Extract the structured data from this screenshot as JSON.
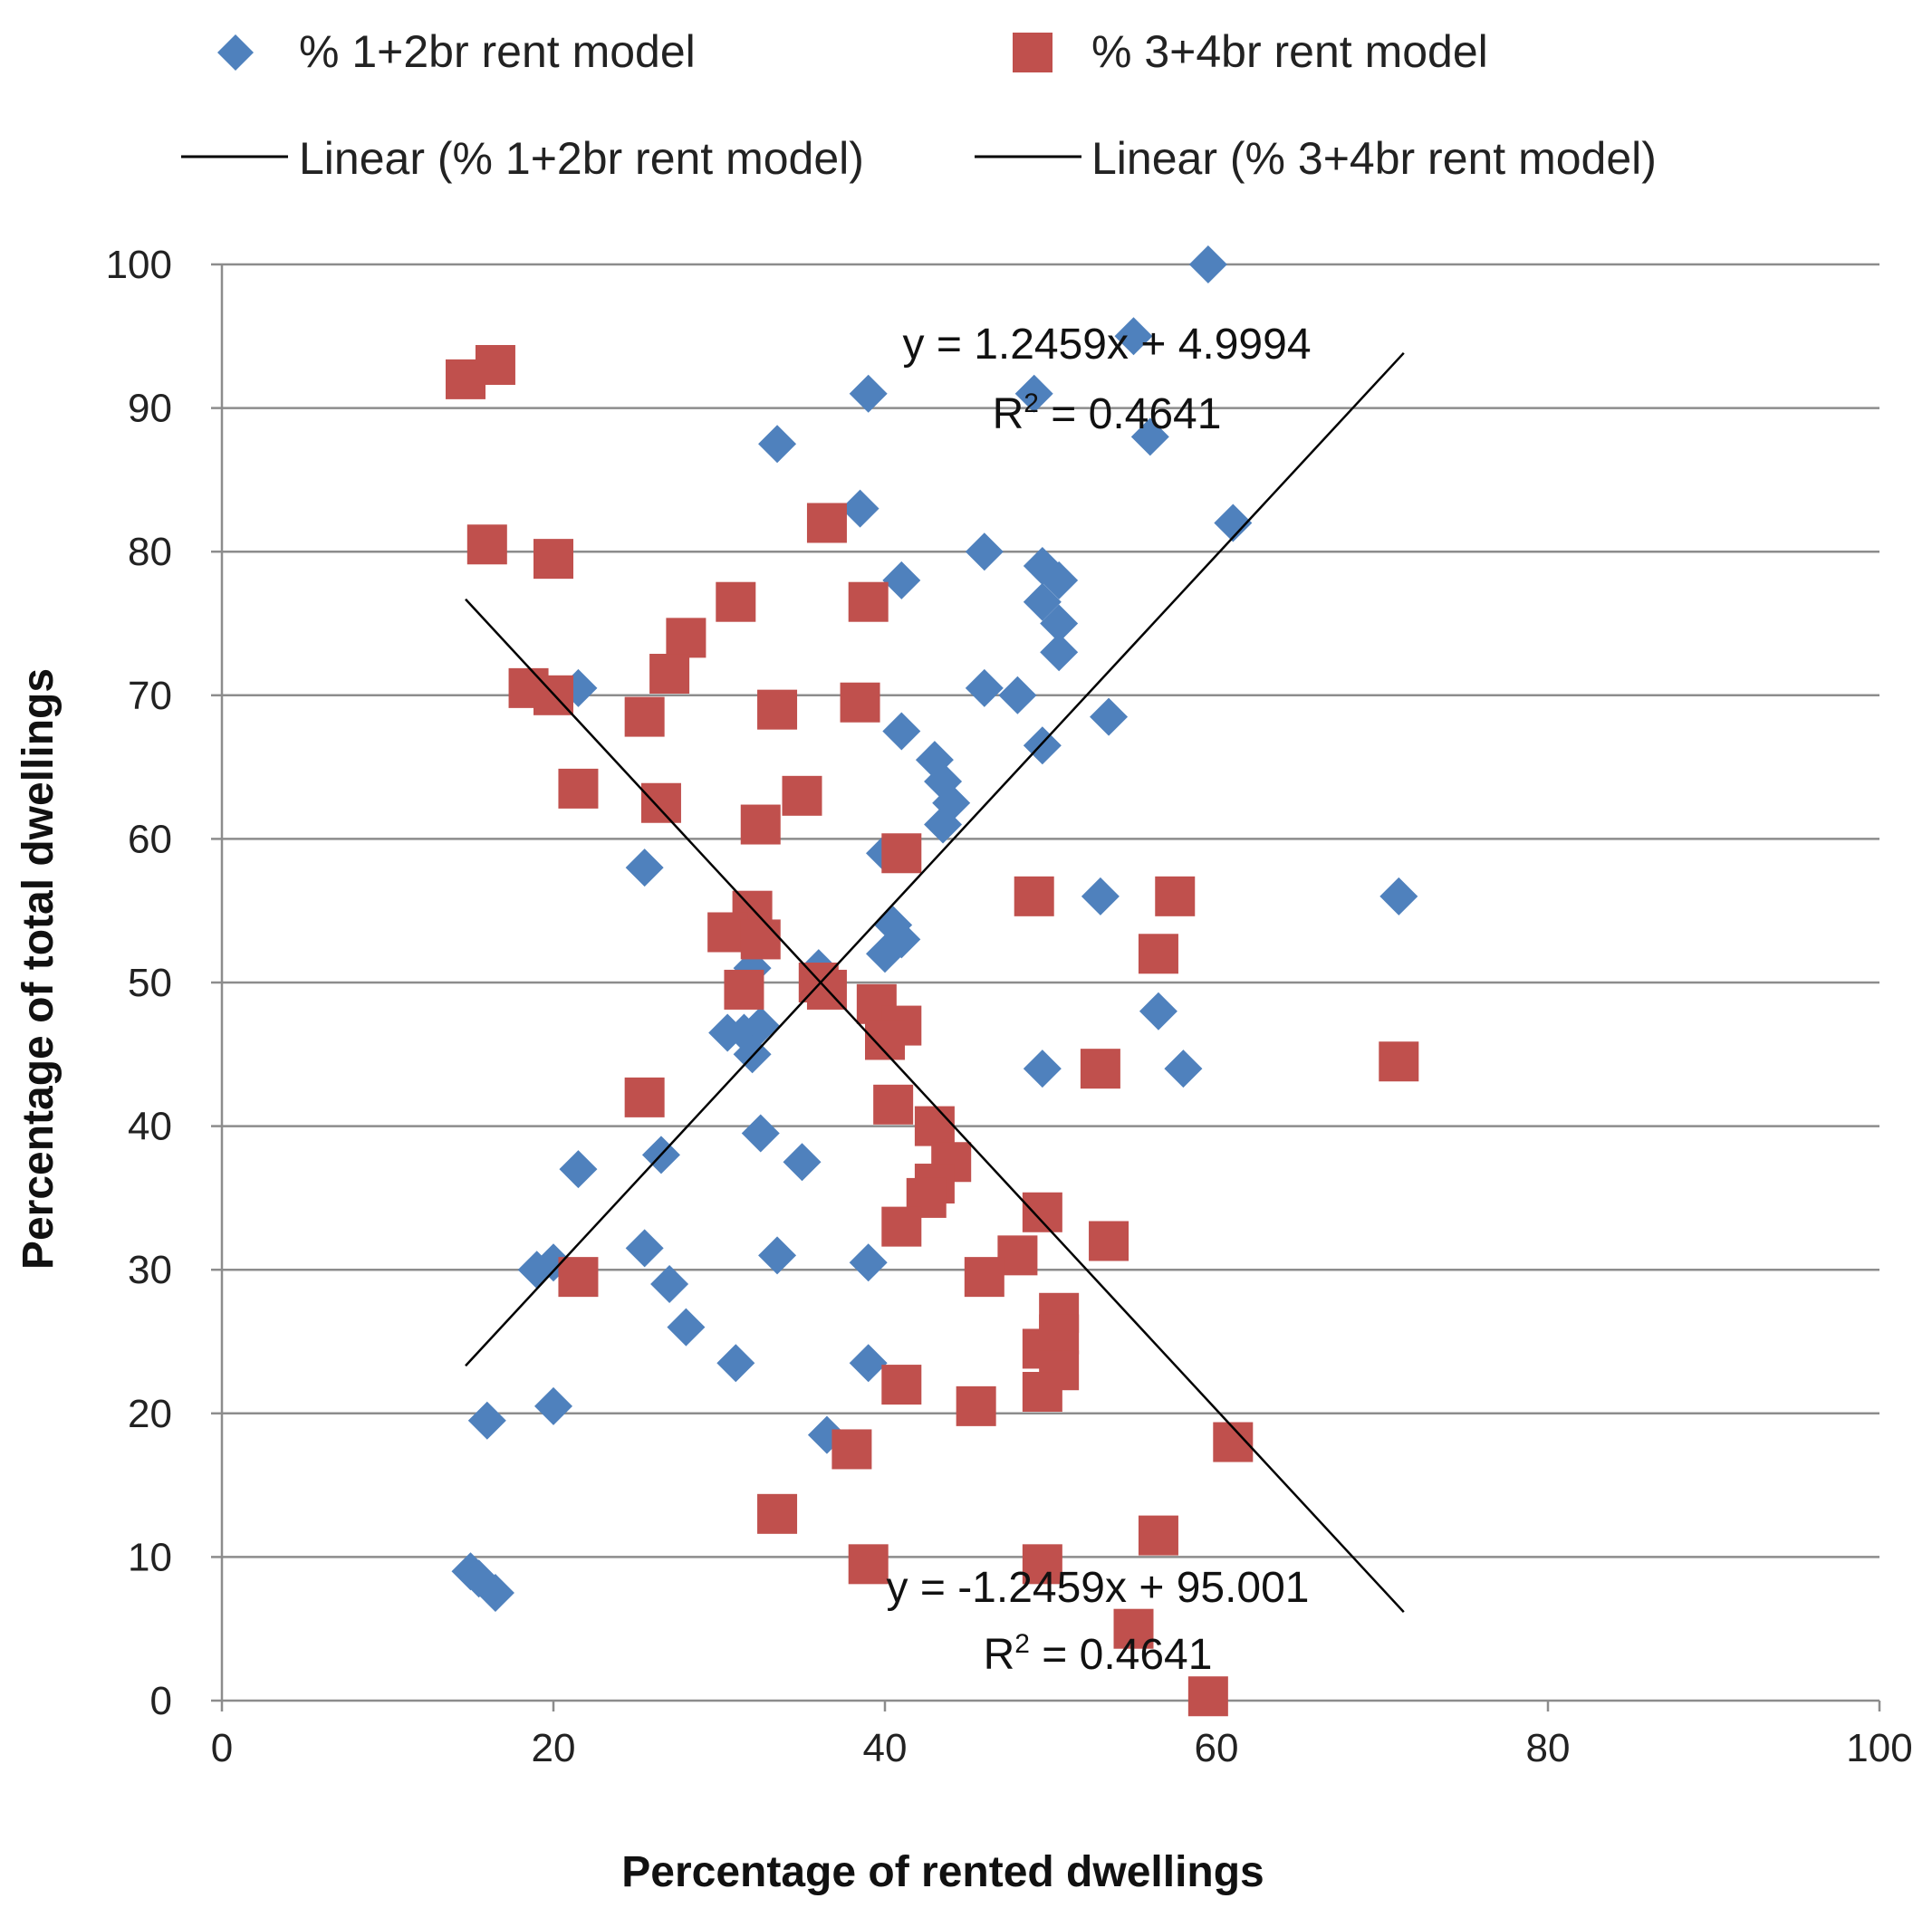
{
  "chart_data": {
    "type": "scatter",
    "xlabel": "Percentage of rented dwellings",
    "ylabel": "Percentage of total dwellings",
    "xlim": [
      0,
      100
    ],
    "ylim": [
      0,
      100
    ],
    "x_ticks": [
      0,
      20,
      40,
      60,
      80,
      100
    ],
    "y_ticks": [
      0,
      10,
      20,
      30,
      40,
      50,
      60,
      70,
      80,
      90,
      100
    ],
    "grid": "horizontal",
    "legend_position": "top",
    "series": [
      {
        "name": "% 1+2br rent model",
        "marker": "diamond",
        "color": "#4F81BD",
        "points": [
          [
            59.5,
            100
          ],
          [
            55,
            95
          ],
          [
            49,
            91
          ],
          [
            39,
            91
          ],
          [
            56,
            88
          ],
          [
            33.5,
            87.5
          ],
          [
            61,
            82
          ],
          [
            38.5,
            83
          ],
          [
            46,
            80
          ],
          [
            41,
            78
          ],
          [
            49.5,
            79
          ],
          [
            50.5,
            78
          ],
          [
            49.5,
            76.5
          ],
          [
            50.5,
            75
          ],
          [
            50.5,
            73
          ],
          [
            21.5,
            70.5
          ],
          [
            46,
            70.5
          ],
          [
            48,
            70
          ],
          [
            53.5,
            68.5
          ],
          [
            41,
            67.5
          ],
          [
            49.5,
            66.5
          ],
          [
            43,
            65.5
          ],
          [
            43.5,
            64
          ],
          [
            44,
            62.5
          ],
          [
            43.5,
            61
          ],
          [
            25.5,
            58
          ],
          [
            40,
            59
          ],
          [
            53,
            56
          ],
          [
            71,
            56
          ],
          [
            40.5,
            54
          ],
          [
            41,
            53
          ],
          [
            40,
            52
          ],
          [
            32,
            51
          ],
          [
            36,
            51
          ],
          [
            56.5,
            48
          ],
          [
            31.5,
            46.5
          ],
          [
            30.5,
            46.5
          ],
          [
            32.5,
            47
          ],
          [
            32,
            45
          ],
          [
            49.5,
            44
          ],
          [
            58,
            44
          ],
          [
            32.5,
            39.5
          ],
          [
            35,
            37.5
          ],
          [
            21.5,
            37
          ],
          [
            26.5,
            38
          ],
          [
            19,
            30
          ],
          [
            20,
            30.5
          ],
          [
            25.5,
            31.5
          ],
          [
            33.5,
            31
          ],
          [
            39,
            30.5
          ],
          [
            27,
            29
          ],
          [
            28,
            26
          ],
          [
            31,
            23.5
          ],
          [
            39,
            23.5
          ],
          [
            20,
            20.5
          ],
          [
            16,
            19.5
          ],
          [
            36.5,
            18.5
          ],
          [
            15,
            9
          ],
          [
            15.5,
            8.5
          ],
          [
            16.5,
            7.5
          ]
        ],
        "trendline": {
          "name": "Linear (% 1+2br rent model)",
          "slope": 1.2459,
          "intercept": 4.9994,
          "x_range": [
            14.7,
            71.3
          ],
          "equation": "y = 1.2459x + 4.9994",
          "r2_prefix": "R",
          "r2_sup": "2",
          "r2_value": " = 0.4641"
        }
      },
      {
        "name": "% 3+4br rent model",
        "marker": "square",
        "color": "#C0504D",
        "points": [
          [
            14.7,
            92
          ],
          [
            16.5,
            93
          ],
          [
            16,
            80.5
          ],
          [
            20,
            79.5
          ],
          [
            36.5,
            82
          ],
          [
            31,
            76.5
          ],
          [
            39,
            76.5
          ],
          [
            28,
            74
          ],
          [
            27,
            71.5
          ],
          [
            18.5,
            70.5
          ],
          [
            20,
            70
          ],
          [
            25.5,
            68.5
          ],
          [
            33.5,
            69
          ],
          [
            38.5,
            69.5
          ],
          [
            21.5,
            63.5
          ],
          [
            26.5,
            62.5
          ],
          [
            35,
            63
          ],
          [
            32.5,
            61
          ],
          [
            41,
            59
          ],
          [
            49,
            56
          ],
          [
            57.5,
            56
          ],
          [
            32,
            55
          ],
          [
            30.5,
            53.5
          ],
          [
            32.5,
            53
          ],
          [
            56.5,
            52
          ],
          [
            36,
            50
          ],
          [
            36.5,
            49.5
          ],
          [
            31.5,
            49.5
          ],
          [
            39.5,
            48.5
          ],
          [
            41,
            47
          ],
          [
            40,
            46
          ],
          [
            53,
            44
          ],
          [
            71,
            44.5
          ],
          [
            25.5,
            42
          ],
          [
            40.5,
            41.5
          ],
          [
            43,
            40
          ],
          [
            44,
            37.5
          ],
          [
            43,
            36
          ],
          [
            42.5,
            35
          ],
          [
            49.5,
            34
          ],
          [
            41,
            33
          ],
          [
            53.5,
            32
          ],
          [
            48,
            31
          ],
          [
            46,
            29.5
          ],
          [
            21.5,
            29.5
          ],
          [
            50.5,
            27
          ],
          [
            50.5,
            25.5
          ],
          [
            49.5,
            24.5
          ],
          [
            50.5,
            23
          ],
          [
            49.5,
            21.5
          ],
          [
            41,
            22
          ],
          [
            45.5,
            20.5
          ],
          [
            61,
            18
          ],
          [
            38,
            17.5
          ],
          [
            33.5,
            13
          ],
          [
            56.5,
            11.5
          ],
          [
            39,
            9.5
          ],
          [
            49.5,
            9.5
          ],
          [
            55,
            5
          ],
          [
            59.5,
            0.3
          ]
        ],
        "trendline": {
          "name": "Linear (% 3+4br rent model)",
          "slope": -1.2459,
          "intercept": 95.001,
          "x_range": [
            14.7,
            71.3
          ],
          "equation": "y = -1.2459x + 95.001",
          "r2_prefix": "R",
          "r2_sup": "2",
          "r2_value": " = 0.4641"
        }
      }
    ]
  },
  "legend": {
    "series1_label": "% 1+2br rent model",
    "series2_label": "% 3+4br rent model",
    "trend1_label": "Linear (% 1+2br rent model)",
    "trend2_label": "Linear (% 3+4br rent model)"
  }
}
